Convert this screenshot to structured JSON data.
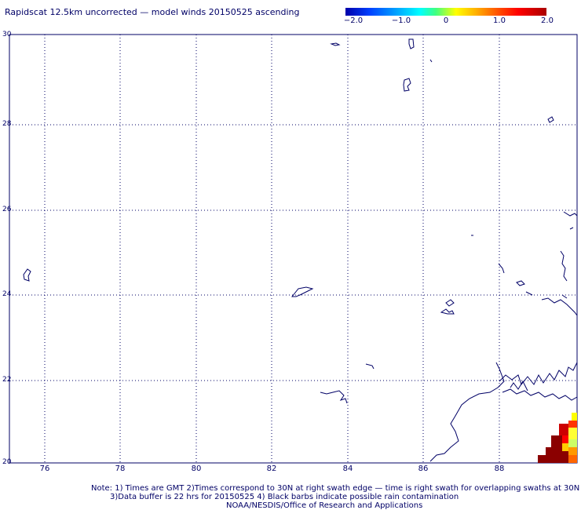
{
  "title": "Rapidscat 12.5km uncorrected — model winds 20150525 ascending",
  "colorbar": {
    "ticks": [
      "−2.0",
      "−1.0",
      "0",
      "1.0",
      "2.0"
    ]
  },
  "map": {
    "lat_labels": [
      "30",
      "28",
      "26",
      "24",
      "22",
      "20"
    ],
    "lon_labels": [
      "76",
      "78",
      "80",
      "82",
      "84",
      "86",
      "88"
    ],
    "lat_range": [
      20,
      30
    ],
    "lon_range": [
      75,
      89.8
    ],
    "coast_color": "#000066",
    "grid": "dotted"
  },
  "notes": {
    "line1": "Note: 1) Times are GMT 2)Times correspond to 30N at right swath edge — time is right swath for overlapping swaths at 30N",
    "line2": "3)Data buffer is 22 hrs for 20150525 4) Black barbs indicate possible rain contamination",
    "line3": "NOAA/NESDIS/Office of Research and Applications"
  }
}
